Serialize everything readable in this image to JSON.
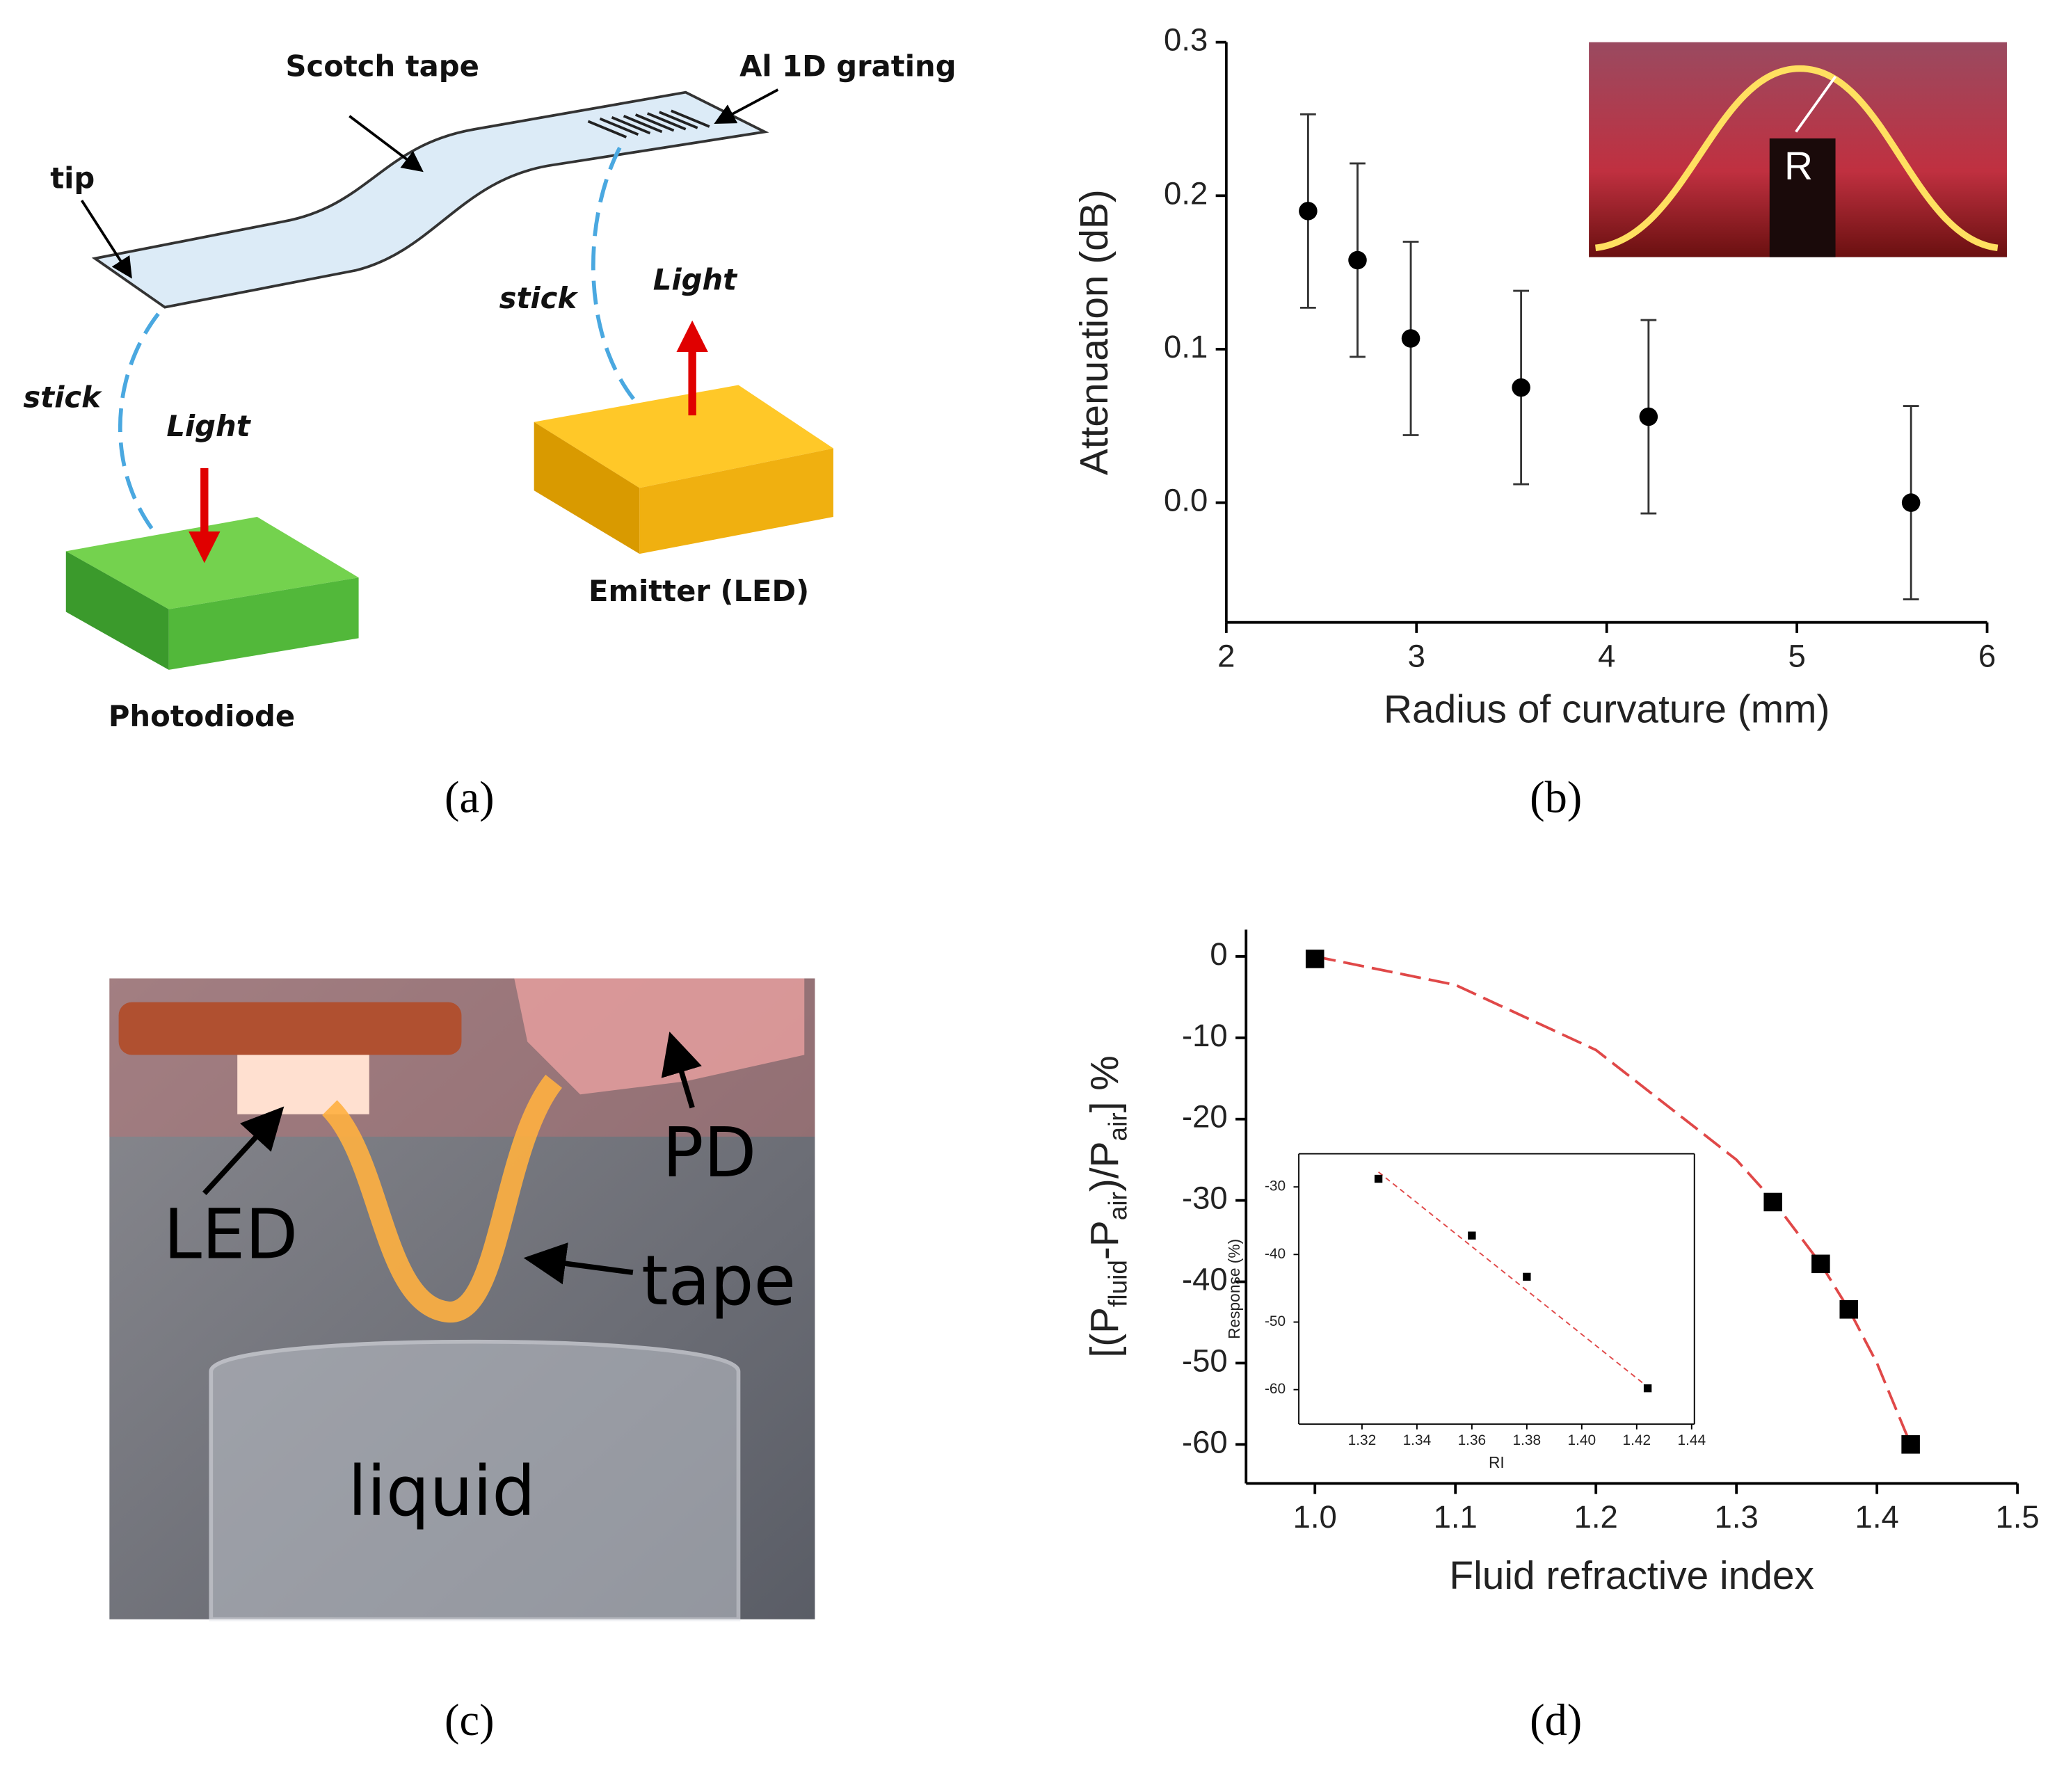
{
  "panel_labels": [
    "(a)",
    "(b)",
    "(c)",
    "(d)"
  ],
  "diagram": {
    "scotch_tape": "Scotch tape",
    "grating": "Al 1D grating",
    "tip": "tip",
    "stick_left": "stick",
    "light_left": "Light",
    "stick_right": "stick",
    "light_right": "Light",
    "emitter": "Emitter (LED)",
    "photodiode": "Photodiode"
  },
  "photo": {
    "led": "LED",
    "pd": "PD",
    "tape": "tape",
    "liquid": "liquid"
  },
  "inset_photo": {
    "label": "R"
  },
  "chart_data": [
    {
      "type": "scatter",
      "marker": "circle",
      "color": "#000000",
      "x_label": "Radius of curvature (mm)",
      "y_label": "Attenuation (dB)",
      "x": [
        2.43,
        2.69,
        2.97,
        3.55,
        4.22,
        5.6
      ],
      "y": [
        0.19,
        0.158,
        0.107,
        0.075,
        0.056,
        0.0
      ],
      "errors": [
        0.063,
        0.063,
        0.063,
        0.063,
        0.063,
        0.063
      ],
      "xlim": [
        2,
        6
      ],
      "xticks": [
        2,
        3,
        4,
        5,
        6
      ],
      "ylim": [
        -0.078,
        0.3
      ],
      "yticks": [
        {
          "value": 0,
          "label": "0.0"
        },
        0.1,
        0.2,
        0.3
      ]
    },
    {
      "type": "scatter",
      "marker": "square",
      "color": "#000000",
      "x_label": "Fluid refractive index",
      "y_label": [
        "[(P",
        "fluid",
        "-P",
        "air",
        ")/P",
        "air",
        "] %"
      ],
      "x": [
        1.0,
        1.326,
        1.36,
        1.38,
        1.424
      ],
      "y": [
        -0.3,
        -30.2,
        -37.8,
        -43.4,
        -60.0
      ],
      "fit": {
        "color": "#e04848",
        "x": [
          1.0,
          1.1,
          1.2,
          1.3,
          1.326,
          1.36,
          1.38,
          1.4,
          1.424
        ],
        "y": [
          0,
          -3.5,
          -11.5,
          -25,
          -30,
          -37.8,
          -43.4,
          -50,
          -60
        ]
      },
      "xlim": [
        0.951,
        1.5
      ],
      "xticks": [
        {
          "value": 1,
          "label": "1.0"
        },
        1.1,
        1.2,
        1.3,
        1.4,
        1.5
      ],
      "ylim": [
        -64.8,
        3.3
      ],
      "yticks": [
        0,
        -10,
        -20,
        -30,
        -40,
        -50,
        -60
      ]
    },
    {
      "type": "scatter",
      "marker": "square",
      "color": "#000000",
      "box": true,
      "x_label": "RI",
      "y_label": "Response (%)",
      "x": [
        1.326,
        1.36,
        1.38,
        1.424
      ],
      "y": [
        -28.8,
        -37.2,
        -43.3,
        -59.8
      ],
      "fit": {
        "color": "#e04848",
        "x": [
          1.326,
          1.424
        ],
        "y": [
          -27.8,
          -59.6
        ]
      },
      "xlim": [
        1.297,
        1.441
      ],
      "xticks": [
        1.32,
        1.34,
        1.36,
        1.38,
        {
          "value": 1.4,
          "label": "1.40"
        },
        1.42,
        1.44
      ],
      "ylim": [
        -65.1,
        -25.1
      ],
      "yticks": [
        -30,
        -40,
        -50,
        -60
      ]
    }
  ]
}
